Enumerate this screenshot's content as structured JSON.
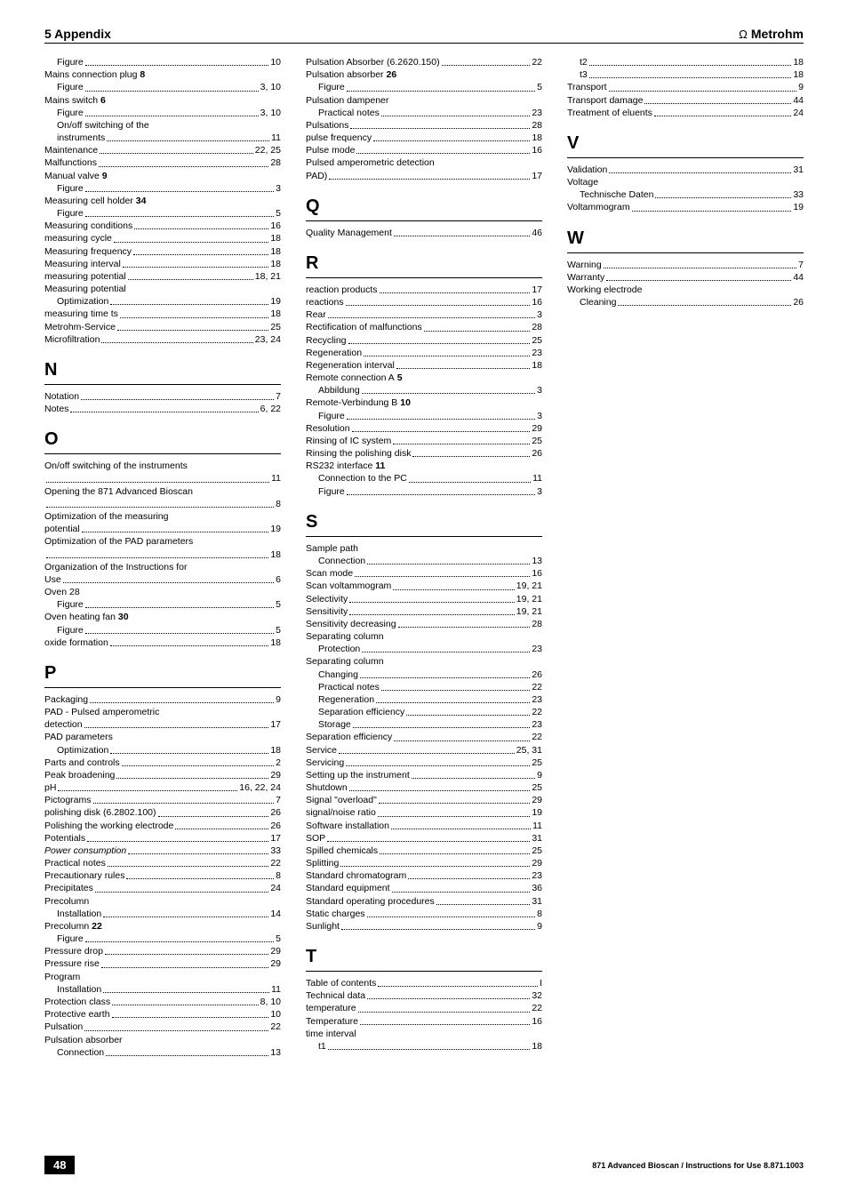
{
  "header": {
    "left": "5 Appendix",
    "brand": "Metrohm"
  },
  "footer": {
    "page": "48",
    "text": "871 Advanced Bioscan / Instructions for Use 8.871.1003"
  },
  "sections": [
    {
      "letter": null,
      "entries": [
        {
          "sub": 1,
          "label": "Figure",
          "page": "10"
        },
        {
          "label": "Mains connection plug",
          "bold": "8"
        },
        {
          "sub": 1,
          "label": "Figure",
          "page": "3, 10"
        },
        {
          "label": "Mains switch",
          "bold": "6"
        },
        {
          "sub": 1,
          "label": "Figure",
          "page": "3, 10"
        },
        {
          "sub": 1,
          "label": "On/off switching of the"
        },
        {
          "sub": 1,
          "label": "instruments",
          "page": "11"
        },
        {
          "label": "Maintenance",
          "page": "22, 25"
        },
        {
          "label": "Malfunctions",
          "page": "28"
        },
        {
          "label": "Manual valve",
          "bold": "9"
        },
        {
          "sub": 1,
          "label": "Figure",
          "page": "3"
        },
        {
          "label": "Measuring cell holder",
          "bold": "34"
        },
        {
          "sub": 1,
          "label": "Figure",
          "page": "5"
        },
        {
          "label": "Measuring conditions",
          "page": "16"
        },
        {
          "label": "measuring cycle",
          "page": "18"
        },
        {
          "label": "Measuring frequency",
          "page": "18"
        },
        {
          "label": "Measuring interval",
          "page": "18"
        },
        {
          "label": "measuring potential",
          "page": "18, 21"
        },
        {
          "label": "Measuring potential"
        },
        {
          "sub": 1,
          "label": "Optimization",
          "page": "19"
        },
        {
          "label": "measuring time ts",
          "page": "18"
        },
        {
          "label": "Metrohm-Service",
          "page": "25"
        },
        {
          "label": "Microfiltration",
          "page": "23, 24"
        }
      ]
    },
    {
      "letter": "N",
      "entries": [
        {
          "label": "Notation",
          "page": "7"
        },
        {
          "label": "Notes",
          "page": "6, 22"
        }
      ]
    },
    {
      "letter": "O",
      "entries": [
        {
          "label": "On/off switching of the instruments"
        },
        {
          "label": "",
          "page": "11"
        },
        {
          "label": "Opening the 871 Advanced Bioscan"
        },
        {
          "label": "",
          "page": "8"
        },
        {
          "label": "Optimization of the measuring"
        },
        {
          "label": "potential",
          "page": "19"
        },
        {
          "label": "Optimization of the PAD parameters"
        },
        {
          "label": "",
          "page": "18"
        },
        {
          "label": "Organization of the Instructions for"
        },
        {
          "label": "Use",
          "page": "6"
        },
        {
          "label": "Oven 28"
        },
        {
          "sub": 1,
          "label": "Figure",
          "page": "5"
        },
        {
          "label": "Oven heating fan",
          "bold": "30"
        },
        {
          "sub": 1,
          "label": "Figure",
          "page": "5"
        },
        {
          "label": "oxide formation",
          "page": "18"
        }
      ]
    },
    {
      "letter": "P",
      "entries": [
        {
          "label": "Packaging",
          "page": "9"
        },
        {
          "label": "PAD - Pulsed amperometric"
        },
        {
          "label": "detection",
          "page": "17"
        },
        {
          "label": "PAD parameters"
        },
        {
          "sub": 1,
          "label": "Optimization",
          "page": "18"
        },
        {
          "label": "Parts and controls",
          "page": "2"
        },
        {
          "label": "Peak broadening",
          "page": "29"
        },
        {
          "label": "pH",
          "page": "16, 22, 24"
        },
        {
          "label": "Pictograms",
          "page": "7"
        },
        {
          "label": "polishing disk (6.2802.100)",
          "page": "26"
        },
        {
          "label": "Polishing the working electrode",
          "page": "26"
        },
        {
          "label": "Potentials",
          "page": "17"
        },
        {
          "label": "Power consumption",
          "italic": true,
          "page": "33"
        },
        {
          "label": "Practical notes",
          "page": "22"
        },
        {
          "label": "Precautionary rules",
          "page": "8"
        },
        {
          "label": "Precipitates",
          "page": "24"
        },
        {
          "label": "Precolumn"
        },
        {
          "sub": 1,
          "label": "Installation",
          "page": "14"
        },
        {
          "label": "Precolumn",
          "bold": "22"
        },
        {
          "sub": 1,
          "label": "Figure",
          "page": "5"
        },
        {
          "label": "Pressure drop",
          "page": "29"
        },
        {
          "label": "Pressure rise",
          "page": "29"
        },
        {
          "label": "Program"
        },
        {
          "sub": 1,
          "label": "Installation",
          "page": "11"
        },
        {
          "label": "Protection class",
          "page": "8, 10"
        },
        {
          "label": "Protective earth",
          "page": "10"
        },
        {
          "label": "Pulsation",
          "page": "22"
        },
        {
          "label": "Pulsation absorber"
        },
        {
          "sub": 1,
          "label": "Connection",
          "page": "13"
        },
        {
          "label": "Pulsation Absorber (6.2620.150)",
          "page": "22"
        },
        {
          "label": "Pulsation absorber",
          "bold": "26"
        },
        {
          "sub": 1,
          "label": "Figure",
          "page": "5"
        },
        {
          "label": "Pulsation dampener"
        },
        {
          "sub": 1,
          "label": "Practical notes",
          "page": "23"
        },
        {
          "label": "Pulsations",
          "page": "28"
        },
        {
          "label": "pulse frequency",
          "page": "18"
        },
        {
          "label": "Pulse mode",
          "page": "16"
        },
        {
          "label": "Pulsed amperometric detection"
        },
        {
          "label": "PAD)",
          "page": "17"
        }
      ]
    },
    {
      "letter": "Q",
      "entries": [
        {
          "label": "Quality Management",
          "page": "46"
        }
      ]
    },
    {
      "letter": "R",
      "entries": [
        {
          "label": "reaction products",
          "page": "17"
        },
        {
          "label": "reactions",
          "page": "16"
        },
        {
          "label": "Rear",
          "page": "3"
        },
        {
          "label": "Rectification of malfunctions",
          "page": "28"
        },
        {
          "label": "Recycling",
          "page": "25"
        },
        {
          "label": "Regeneration",
          "page": "23"
        },
        {
          "label": "Regeneration interval",
          "page": "18"
        },
        {
          "label": "Remote connection A",
          "bold": "5"
        },
        {
          "sub": 1,
          "label": "Abbildung",
          "page": "3"
        },
        {
          "label": "Remote-Verbindung B",
          "bold": "10"
        },
        {
          "sub": 1,
          "label": "Figure",
          "page": "3"
        },
        {
          "label": "Resolution",
          "page": "29"
        },
        {
          "label": "Rinsing of IC system",
          "page": "25"
        },
        {
          "label": "Rinsing the polishing disk",
          "page": "26"
        },
        {
          "label": "RS232 interface",
          "bold": "11"
        },
        {
          "sub": 1,
          "label": "Connection to the PC",
          "page": "11"
        },
        {
          "sub": 1,
          "label": "Figure",
          "page": "3"
        }
      ]
    },
    {
      "letter": "S",
      "entries": [
        {
          "label": "Sample path"
        },
        {
          "sub": 1,
          "label": "Connection",
          "page": "13"
        },
        {
          "label": "Scan mode",
          "page": "16"
        },
        {
          "label": "Scan voltammogram",
          "page": "19, 21"
        },
        {
          "label": "Selectivity",
          "page": "19, 21"
        },
        {
          "label": "Sensitivity",
          "page": "19, 21"
        },
        {
          "label": "Sensitivity decreasing",
          "page": "28"
        },
        {
          "label": "Separating column"
        },
        {
          "sub": 1,
          "label": "Protection",
          "page": "23"
        },
        {
          "label": "Separating column"
        },
        {
          "sub": 1,
          "label": "Changing",
          "page": "26"
        },
        {
          "sub": 1,
          "label": "Practical notes",
          "page": "22"
        },
        {
          "sub": 1,
          "label": "Regeneration",
          "page": "23"
        },
        {
          "sub": 1,
          "label": "Separation efficiency",
          "page": "22"
        },
        {
          "sub": 1,
          "label": "Storage",
          "page": "23"
        },
        {
          "label": "Separation efficiency",
          "page": "22"
        },
        {
          "label": "Service",
          "page": "25, 31"
        },
        {
          "label": "Servicing",
          "page": "25"
        },
        {
          "label": "Setting up the instrument",
          "page": "9"
        },
        {
          "label": "Shutdown",
          "page": "25"
        },
        {
          "label": "Signal \"overload\"",
          "page": "29"
        },
        {
          "label": "signal/noise ratio",
          "page": "19"
        },
        {
          "label": "Software installation",
          "page": "11"
        },
        {
          "label": "SOP",
          "page": "31"
        },
        {
          "label": "Spilled chemicals",
          "page": "25"
        },
        {
          "label": "Splitting",
          "page": "29"
        },
        {
          "label": "Standard chromatogram",
          "page": "23"
        },
        {
          "label": "Standard equipment",
          "page": "36"
        },
        {
          "label": "Standard operating procedures",
          "page": "31"
        },
        {
          "label": "Static charges",
          "page": "8"
        },
        {
          "label": "Sunlight",
          "page": "9"
        }
      ]
    },
    {
      "letter": "T",
      "entries": [
        {
          "label": "Table of contents",
          "page": "I"
        },
        {
          "label": "Technical data",
          "page": "32"
        },
        {
          "label": "temperature",
          "page": "22"
        },
        {
          "label": "Temperature",
          "page": "16"
        },
        {
          "label": "time interval"
        },
        {
          "sub": 1,
          "label": "t1",
          "page": "18"
        },
        {
          "sub": 1,
          "label": "t2",
          "page": "18"
        },
        {
          "sub": 1,
          "label": "t3",
          "page": "18"
        },
        {
          "label": "Transport",
          "page": "9"
        },
        {
          "label": "Transport damage",
          "page": "44"
        },
        {
          "label": "Treatment of eluents",
          "page": "24"
        }
      ]
    },
    {
      "letter": "V",
      "entries": [
        {
          "label": "Validation",
          "page": "31"
        },
        {
          "label": "Voltage"
        },
        {
          "sub": 1,
          "label": "Technische Daten",
          "page": "33"
        },
        {
          "label": "Voltammogram",
          "page": "19"
        }
      ]
    },
    {
      "letter": "W",
      "entries": [
        {
          "label": "Warning",
          "page": "7"
        },
        {
          "label": "Warranty",
          "page": "44"
        },
        {
          "label": "Working electrode"
        },
        {
          "sub": 1,
          "label": "Cleaning",
          "page": "26"
        }
      ]
    }
  ]
}
